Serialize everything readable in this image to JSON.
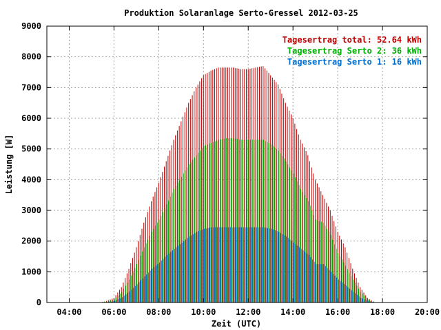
{
  "chart_data": {
    "type": "bar",
    "title": "Produktion Solaranlage Serto-Gressel 2012-03-25",
    "xlabel": "Zeit (UTC)",
    "ylabel": "Leistung [W]",
    "x_ticks": [
      "04:00",
      "06:00",
      "08:00",
      "10:00",
      "12:00",
      "14:00",
      "16:00",
      "18:00",
      "20:00"
    ],
    "y_ticks": [
      "0",
      "1000",
      "2000",
      "3000",
      "4000",
      "5000",
      "6000",
      "7000",
      "8000",
      "9000"
    ],
    "xlim_hours": [
      3,
      20
    ],
    "ylim": [
      0,
      9000
    ],
    "grid": true,
    "legend_position": "top-right",
    "legend": [
      {
        "text": "Tagesertrag total: 52.64 kWh",
        "color": "#c00000"
      },
      {
        "text": "Tagesertrag Serto 2: 36 kWh",
        "color": "#00b000"
      },
      {
        "text": "Tagesertrag Serto 1: 16 kWh",
        "color": "#0070d0"
      }
    ],
    "series": [
      {
        "name": "total",
        "color": "#c00000",
        "x": [
          "05:20",
          "05:40",
          "06:00",
          "06:20",
          "06:40",
          "07:00",
          "07:20",
          "07:40",
          "08:00",
          "08:20",
          "08:40",
          "09:00",
          "09:20",
          "09:40",
          "10:00",
          "10:20",
          "10:40",
          "11:00",
          "11:20",
          "11:40",
          "12:00",
          "12:20",
          "12:40",
          "13:00",
          "13:20",
          "13:40",
          "14:00",
          "14:20",
          "14:40",
          "15:00",
          "15:20",
          "15:40",
          "16:00",
          "16:20",
          "16:40",
          "17:00",
          "17:20",
          "17:40"
        ],
        "values": [
          0,
          50,
          150,
          500,
          1100,
          1800,
          2600,
          3300,
          3900,
          4600,
          5300,
          5900,
          6500,
          7000,
          7400,
          7550,
          7650,
          7650,
          7650,
          7600,
          7600,
          7650,
          7700,
          7400,
          7100,
          6500,
          6000,
          5300,
          4800,
          4000,
          3500,
          3000,
          2300,
          1800,
          1100,
          500,
          150,
          0
        ]
      },
      {
        "name": "Serto 2",
        "color": "#00b000",
        "x": [
          "05:20",
          "05:40",
          "06:00",
          "06:20",
          "06:40",
          "07:00",
          "07:20",
          "07:40",
          "08:00",
          "08:20",
          "08:40",
          "09:00",
          "09:20",
          "09:40",
          "10:00",
          "10:20",
          "10:40",
          "11:00",
          "11:20",
          "11:40",
          "12:00",
          "12:20",
          "12:40",
          "13:00",
          "13:20",
          "13:40",
          "14:00",
          "14:20",
          "14:40",
          "15:00",
          "15:20",
          "15:40",
          "16:00",
          "16:20",
          "16:40",
          "17:00",
          "17:20",
          "17:40"
        ],
        "values": [
          0,
          30,
          100,
          350,
          750,
          1250,
          1800,
          2300,
          2700,
          3200,
          3700,
          4100,
          4500,
          4800,
          5100,
          5200,
          5300,
          5350,
          5350,
          5300,
          5300,
          5300,
          5300,
          5150,
          4950,
          4600,
          4200,
          3700,
          3300,
          2700,
          2600,
          2200,
          1600,
          1200,
          750,
          350,
          100,
          0
        ]
      },
      {
        "name": "Serto 1",
        "color": "#0070d0",
        "x": [
          "05:20",
          "05:40",
          "06:00",
          "06:20",
          "06:40",
          "07:00",
          "07:20",
          "07:40",
          "08:00",
          "08:20",
          "08:40",
          "09:00",
          "09:20",
          "09:40",
          "10:00",
          "10:20",
          "10:40",
          "11:00",
          "11:20",
          "11:40",
          "12:00",
          "12:20",
          "12:40",
          "13:00",
          "13:20",
          "13:40",
          "14:00",
          "14:20",
          "14:40",
          "15:00",
          "15:20",
          "15:40",
          "16:00",
          "16:20",
          "16:40",
          "17:00",
          "17:20",
          "17:40"
        ],
        "values": [
          0,
          15,
          50,
          170,
          360,
          600,
          850,
          1100,
          1300,
          1550,
          1750,
          1950,
          2150,
          2300,
          2400,
          2450,
          2450,
          2450,
          2450,
          2450,
          2450,
          2450,
          2450,
          2400,
          2300,
          2150,
          1950,
          1750,
          1550,
          1250,
          1250,
          1000,
          750,
          550,
          350,
          150,
          50,
          0
        ]
      }
    ]
  }
}
